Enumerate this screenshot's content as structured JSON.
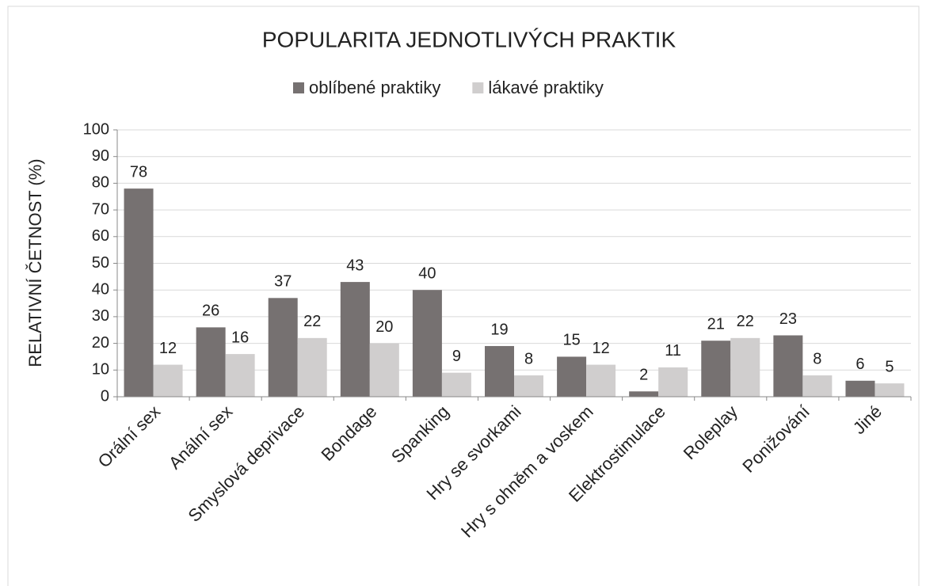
{
  "chart_data": {
    "type": "bar",
    "title": "POPULARITA JEDNOTLIVÝCH PRAKTIK",
    "y_label": "RELATIVNÍ ČETNOST (%)",
    "categories": [
      "Orální sex",
      "Anální sex",
      "Smyslová deprivace",
      "Bondage",
      "Spanking",
      "Hry se svorkami",
      "Hry s ohněm a voskem",
      "Elektrostimulace",
      "Roleplay",
      "Ponižování",
      "Jiné"
    ],
    "series": [
      {
        "name": "oblíbené praktiky",
        "color": "#767171",
        "values": [
          78,
          26,
          37,
          43,
          40,
          19,
          15,
          2,
          21,
          23,
          6
        ]
      },
      {
        "name": "lákavé praktiky",
        "color": "#d0cece",
        "values": [
          12,
          16,
          22,
          20,
          9,
          8,
          12,
          11,
          22,
          8,
          5
        ]
      }
    ],
    "ylim": [
      0,
      100
    ],
    "yticks": [
      0,
      10,
      20,
      30,
      40,
      50,
      60,
      70,
      80,
      90,
      100
    ],
    "grid": true,
    "legend": "top"
  }
}
